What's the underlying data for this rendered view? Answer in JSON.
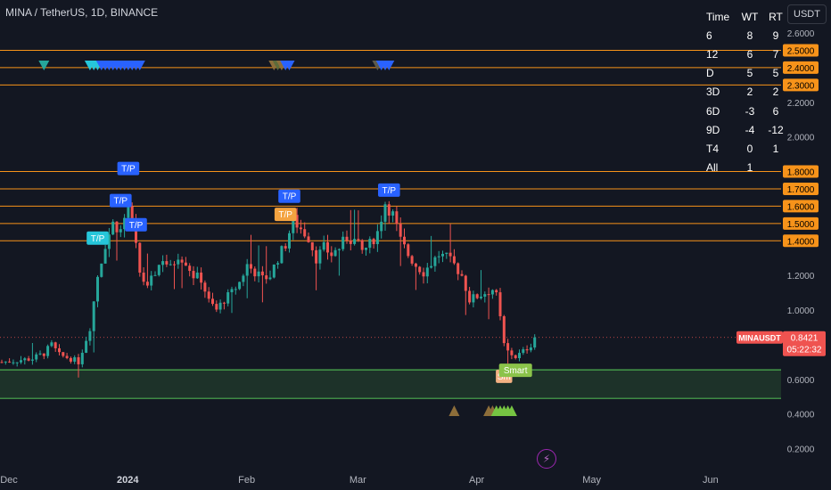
{
  "header": {
    "title": "MINA / TetherUS, 1D, BINANCE",
    "currency_button": "USDT"
  },
  "signal_table": {
    "headers": [
      "Time",
      "WT",
      "RT"
    ],
    "rows": [
      [
        "6",
        "8",
        "9"
      ],
      [
        "12",
        "6",
        "7"
      ],
      [
        "D",
        "5",
        "5"
      ],
      [
        "3D",
        "2",
        "2"
      ],
      [
        "6D",
        "-3",
        "6"
      ],
      [
        "9D",
        "-4",
        "-12"
      ],
      [
        "T4",
        "0",
        "1"
      ],
      [
        "All",
        "1",
        ""
      ]
    ]
  },
  "chart_data": {
    "type": "candlestick",
    "symbol": "MINAUSDT",
    "last_price": "0.8421",
    "countdown": "05:22:32",
    "ylim": [
      0.15,
      2.75
    ],
    "y_ticks": [
      {
        "value": 2.6,
        "label": "2.6000"
      },
      {
        "value": 2.2,
        "label": "2.2000"
      },
      {
        "value": 2.0,
        "label": "2.0000"
      },
      {
        "value": 1.2,
        "label": "1.2000"
      },
      {
        "value": 1.0,
        "label": "1.0000"
      },
      {
        "value": 0.6,
        "label": "0.6000"
      },
      {
        "value": 0.4,
        "label": "0.4000"
      },
      {
        "value": 0.2,
        "label": "0.2000"
      }
    ],
    "x_ticks": [
      {
        "day": 0,
        "label": "Dec",
        "bold": false
      },
      {
        "day": 31,
        "label": "2024",
        "bold": true
      },
      {
        "day": 62,
        "label": "Feb",
        "bold": false
      },
      {
        "day": 91,
        "label": "Mar",
        "bold": false
      },
      {
        "day": 122,
        "label": "Apr",
        "bold": false
      },
      {
        "day": 152,
        "label": "May",
        "bold": false
      },
      {
        "day": 183,
        "label": "Jun",
        "bold": false
      }
    ],
    "levels": [
      {
        "value": 2.5,
        "label": "2.5000"
      },
      {
        "value": 2.4,
        "label": "2.4000"
      },
      {
        "value": 2.3,
        "label": "2.3000"
      },
      {
        "value": 1.8,
        "label": "1.8000"
      },
      {
        "value": 1.7,
        "label": "1.7000"
      },
      {
        "value": 1.6,
        "label": "1.6000"
      },
      {
        "value": 1.5,
        "label": "1.5000"
      },
      {
        "value": 1.4,
        "label": "1.4000"
      }
    ],
    "support_zone": [
      0.49,
      0.655
    ],
    "close_path": [
      [
        0,
        0.7
      ],
      [
        4,
        0.71
      ],
      [
        8,
        0.72
      ],
      [
        11,
        0.75
      ],
      [
        13,
        0.8
      ],
      [
        15,
        0.74
      ],
      [
        18,
        0.72
      ],
      [
        20,
        0.7
      ],
      [
        23,
        0.9
      ],
      [
        25,
        1.2
      ],
      [
        27,
        1.38
      ],
      [
        29,
        1.5
      ],
      [
        31,
        1.46
      ],
      [
        33,
        1.6
      ],
      [
        34,
        1.5
      ],
      [
        36,
        1.22
      ],
      [
        38,
        1.12
      ],
      [
        40,
        1.22
      ],
      [
        42,
        1.3
      ],
      [
        44,
        1.24
      ],
      [
        46,
        1.32
      ],
      [
        48,
        1.28
      ],
      [
        50,
        1.2
      ],
      [
        52,
        1.18
      ],
      [
        54,
        1.05
      ],
      [
        56,
        1.0
      ],
      [
        58,
        1.06
      ],
      [
        60,
        1.1
      ],
      [
        62,
        1.16
      ],
      [
        64,
        1.26
      ],
      [
        66,
        1.22
      ],
      [
        68,
        1.18
      ],
      [
        70,
        1.2
      ],
      [
        72,
        1.3
      ],
      [
        74,
        1.38
      ],
      [
        76,
        1.52
      ],
      [
        78,
        1.47
      ],
      [
        80,
        1.42
      ],
      [
        82,
        1.3
      ],
      [
        84,
        1.36
      ],
      [
        86,
        1.32
      ],
      [
        88,
        1.36
      ],
      [
        90,
        1.42
      ],
      [
        92,
        1.4
      ],
      [
        94,
        1.34
      ],
      [
        96,
        1.38
      ],
      [
        98,
        1.45
      ],
      [
        100,
        1.62
      ],
      [
        102,
        1.55
      ],
      [
        104,
        1.4
      ],
      [
        106,
        1.32
      ],
      [
        108,
        1.26
      ],
      [
        110,
        1.22
      ],
      [
        112,
        1.27
      ],
      [
        114,
        1.32
      ],
      [
        116,
        1.3
      ],
      [
        118,
        1.26
      ],
      [
        120,
        1.2
      ],
      [
        122,
        1.06
      ],
      [
        124,
        1.08
      ],
      [
        126,
        1.1
      ],
      [
        128,
        1.12
      ],
      [
        129,
        1.08
      ],
      [
        130,
        0.95
      ],
      [
        131,
        0.8
      ],
      [
        132,
        0.76
      ],
      [
        134,
        0.73
      ],
      [
        136,
        0.76
      ],
      [
        138,
        0.8
      ],
      [
        139,
        0.8421
      ]
    ],
    "labels": [
      {
        "text": "T/P",
        "day": 25,
        "value": 1.418,
        "color": "#26c6da"
      },
      {
        "text": "T/P",
        "day": 31,
        "value": 1.635,
        "color": "#2962ff"
      },
      {
        "text": "T/P",
        "day": 33,
        "value": 1.82,
        "color": "#2962ff"
      },
      {
        "text": "T/P",
        "day": 35,
        "value": 1.495,
        "color": "#2962ff"
      },
      {
        "text": "T/P",
        "day": 74,
        "value": 1.555,
        "color": "#f4a340"
      },
      {
        "text": "T/P",
        "day": 75,
        "value": 1.66,
        "color": "#2962ff"
      },
      {
        "text": "T/P",
        "day": 101,
        "value": 1.695,
        "color": "#2962ff"
      },
      {
        "text": "Sm",
        "day": 131,
        "value": 0.62,
        "color": "#f4b183"
      },
      {
        "text": "Smart",
        "day": 134,
        "value": 0.655,
        "color": "#8bc34a"
      }
    ],
    "markers_down": [
      {
        "day": 11,
        "color": "#26a69a"
      },
      {
        "day": 23,
        "color": "#26c6da"
      },
      {
        "day": 24,
        "color": "#26c6da"
      },
      {
        "day": 25,
        "color": "#26c6da"
      },
      {
        "day": 26,
        "color": "#2962ff"
      },
      {
        "day": 27,
        "color": "#2962ff"
      },
      {
        "day": 28,
        "color": "#2962ff"
      },
      {
        "day": 29,
        "color": "#2962ff"
      },
      {
        "day": 30,
        "color": "#2962ff"
      },
      {
        "day": 31,
        "color": "#2962ff"
      },
      {
        "day": 32,
        "color": "#2962ff"
      },
      {
        "day": 33,
        "color": "#2962ff"
      },
      {
        "day": 34,
        "color": "#2962ff"
      },
      {
        "day": 35,
        "color": "#2962ff"
      },
      {
        "day": 36,
        "color": "#2962ff"
      },
      {
        "day": 71,
        "color": "#8d6e3a"
      },
      {
        "day": 72,
        "color": "#5d6b3a"
      },
      {
        "day": 73,
        "color": "#8d6e3a"
      },
      {
        "day": 74,
        "color": "#2962ff"
      },
      {
        "day": 75,
        "color": "#2962ff"
      },
      {
        "day": 98,
        "color": "#5d5a4a"
      },
      {
        "day": 99,
        "color": "#2962ff"
      },
      {
        "day": 100,
        "color": "#2962ff"
      },
      {
        "day": 101,
        "color": "#2962ff"
      }
    ],
    "markers_up": [
      {
        "day": 118,
        "color": "#8d6e3a"
      },
      {
        "day": 127,
        "color": "#8d6e3a"
      },
      {
        "day": 128,
        "color": "#8d6e3a"
      },
      {
        "day": 129,
        "color": "#76c442"
      },
      {
        "day": 130,
        "color": "#76c442"
      },
      {
        "day": 131,
        "color": "#76c442"
      },
      {
        "day": 132,
        "color": "#76c442"
      },
      {
        "day": 133,
        "color": "#76c442"
      }
    ],
    "colors": {
      "up": "#26a69a",
      "down": "#ef5350",
      "level": "#f7931a",
      "zone": "#4caf50",
      "background": "#131722"
    }
  }
}
